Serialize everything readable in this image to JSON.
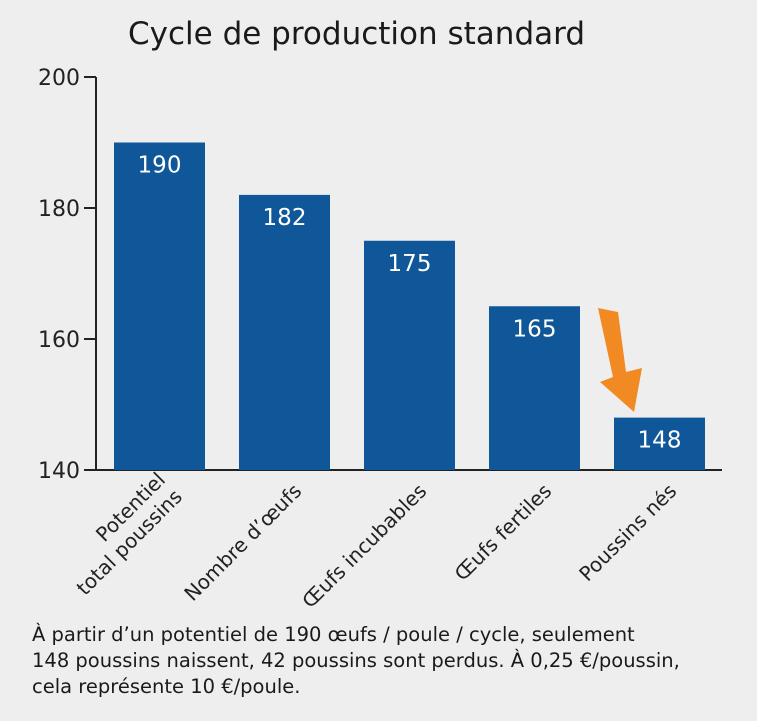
{
  "chart_data": {
    "type": "bar",
    "title": "Cycle de production standard",
    "categories": [
      [
        "Potentiel",
        "total poussins"
      ],
      [
        "Nombre d’œufs"
      ],
      [
        "Œufs incubables"
      ],
      [
        "Œufs fertiles"
      ],
      [
        "Poussins nés"
      ]
    ],
    "values": [
      190,
      182,
      175,
      165,
      148
    ],
    "data_labels": [
      "190",
      "182",
      "175",
      "165",
      "148"
    ],
    "ylim": [
      140,
      200
    ],
    "yticks": [
      140,
      160,
      180,
      200
    ],
    "xlabel": "",
    "ylabel": "",
    "grid": false,
    "bar_color": "#0f5799",
    "highlight_arrow_color": "#f28a24",
    "highlight_category_index": 4
  },
  "caption": {
    "line1": "À partir d’un potentiel de 190 œufs / poule / cycle, seulement",
    "line2": "148 poussins naissent, 42 poussins sont perdus. À 0,25 €/poussin,",
    "line3": "cela représente 10 €/poule."
  }
}
